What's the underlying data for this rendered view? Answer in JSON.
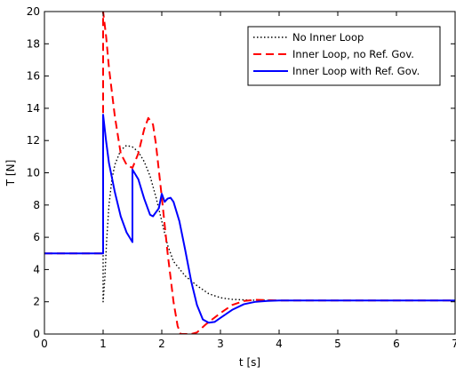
{
  "chart_data": {
    "type": "line",
    "title": "",
    "xlabel": "t [s]",
    "ylabel": "T [N]",
    "xlim": [
      0,
      7
    ],
    "ylim": [
      0,
      20
    ],
    "xticks": [
      0,
      1,
      2,
      3,
      4,
      5,
      6,
      7
    ],
    "yticks": [
      0,
      2,
      4,
      6,
      8,
      10,
      12,
      14,
      16,
      18,
      20
    ],
    "grid": false,
    "legend_position": "top-right",
    "series": [
      {
        "name": "No Inner Loop",
        "color": "#000000",
        "style": "dotted",
        "points": [
          [
            0,
            5
          ],
          [
            1,
            5
          ],
          [
            1,
            2.0
          ],
          [
            1.03,
            3.5
          ],
          [
            1.06,
            5.8
          ],
          [
            1.1,
            8.0
          ],
          [
            1.15,
            9.6
          ],
          [
            1.2,
            10.5
          ],
          [
            1.3,
            11.4
          ],
          [
            1.4,
            11.7
          ],
          [
            1.5,
            11.6
          ],
          [
            1.6,
            11.3
          ],
          [
            1.7,
            10.7
          ],
          [
            1.8,
            9.8
          ],
          [
            1.9,
            8.5
          ],
          [
            2.0,
            7.0
          ],
          [
            2.1,
            5.5
          ],
          [
            2.2,
            4.5
          ],
          [
            2.4,
            3.6
          ],
          [
            2.6,
            3.0
          ],
          [
            2.8,
            2.5
          ],
          [
            3.0,
            2.25
          ],
          [
            3.2,
            2.15
          ],
          [
            3.5,
            2.1
          ],
          [
            4.0,
            2.08
          ],
          [
            5.0,
            2.08
          ],
          [
            7.0,
            2.08
          ]
        ]
      },
      {
        "name": "Inner Loop, no Ref. Gov.",
        "color": "#ff0000",
        "style": "dashed",
        "points": [
          [
            0,
            5
          ],
          [
            1,
            5
          ],
          [
            1,
            20
          ],
          [
            1.05,
            18.5
          ],
          [
            1.1,
            16.5
          ],
          [
            1.2,
            13.5
          ],
          [
            1.3,
            11.2
          ],
          [
            1.4,
            10.5
          ],
          [
            1.5,
            10.3
          ],
          [
            1.6,
            11.2
          ],
          [
            1.7,
            12.7
          ],
          [
            1.77,
            13.4
          ],
          [
            1.85,
            13.0
          ],
          [
            1.9,
            11.8
          ],
          [
            2.0,
            8.5
          ],
          [
            2.1,
            5.0
          ],
          [
            2.2,
            2.0
          ],
          [
            2.27,
            0.5
          ],
          [
            2.32,
            0.0
          ],
          [
            2.5,
            0.0
          ],
          [
            2.6,
            0.1
          ],
          [
            2.75,
            0.6
          ],
          [
            3.0,
            1.3
          ],
          [
            3.2,
            1.8
          ],
          [
            3.4,
            2.05
          ],
          [
            3.6,
            2.12
          ],
          [
            3.8,
            2.1
          ],
          [
            4.0,
            2.08
          ],
          [
            7.0,
            2.08
          ]
        ]
      },
      {
        "name": "Inner Loop with Ref. Gov.",
        "color": "#0000ff",
        "style": "solid",
        "points": [
          [
            0,
            5
          ],
          [
            1,
            5
          ],
          [
            1,
            13.6
          ],
          [
            1.05,
            12.0
          ],
          [
            1.1,
            10.6
          ],
          [
            1.2,
            8.8
          ],
          [
            1.3,
            7.3
          ],
          [
            1.4,
            6.3
          ],
          [
            1.5,
            5.7
          ],
          [
            1.5,
            10.2
          ],
          [
            1.6,
            9.6
          ],
          [
            1.7,
            8.4
          ],
          [
            1.8,
            7.4
          ],
          [
            1.85,
            7.3
          ],
          [
            1.95,
            7.8
          ],
          [
            2.0,
            8.7
          ],
          [
            2.05,
            8.2
          ],
          [
            2.1,
            8.4
          ],
          [
            2.15,
            8.45
          ],
          [
            2.2,
            8.2
          ],
          [
            2.3,
            7.0
          ],
          [
            2.4,
            5.2
          ],
          [
            2.5,
            3.3
          ],
          [
            2.6,
            1.8
          ],
          [
            2.7,
            0.9
          ],
          [
            2.8,
            0.7
          ],
          [
            2.9,
            0.75
          ],
          [
            3.0,
            1.0
          ],
          [
            3.2,
            1.5
          ],
          [
            3.4,
            1.85
          ],
          [
            3.6,
            2.0
          ],
          [
            3.8,
            2.05
          ],
          [
            4.0,
            2.08
          ],
          [
            7.0,
            2.08
          ]
        ]
      }
    ]
  }
}
